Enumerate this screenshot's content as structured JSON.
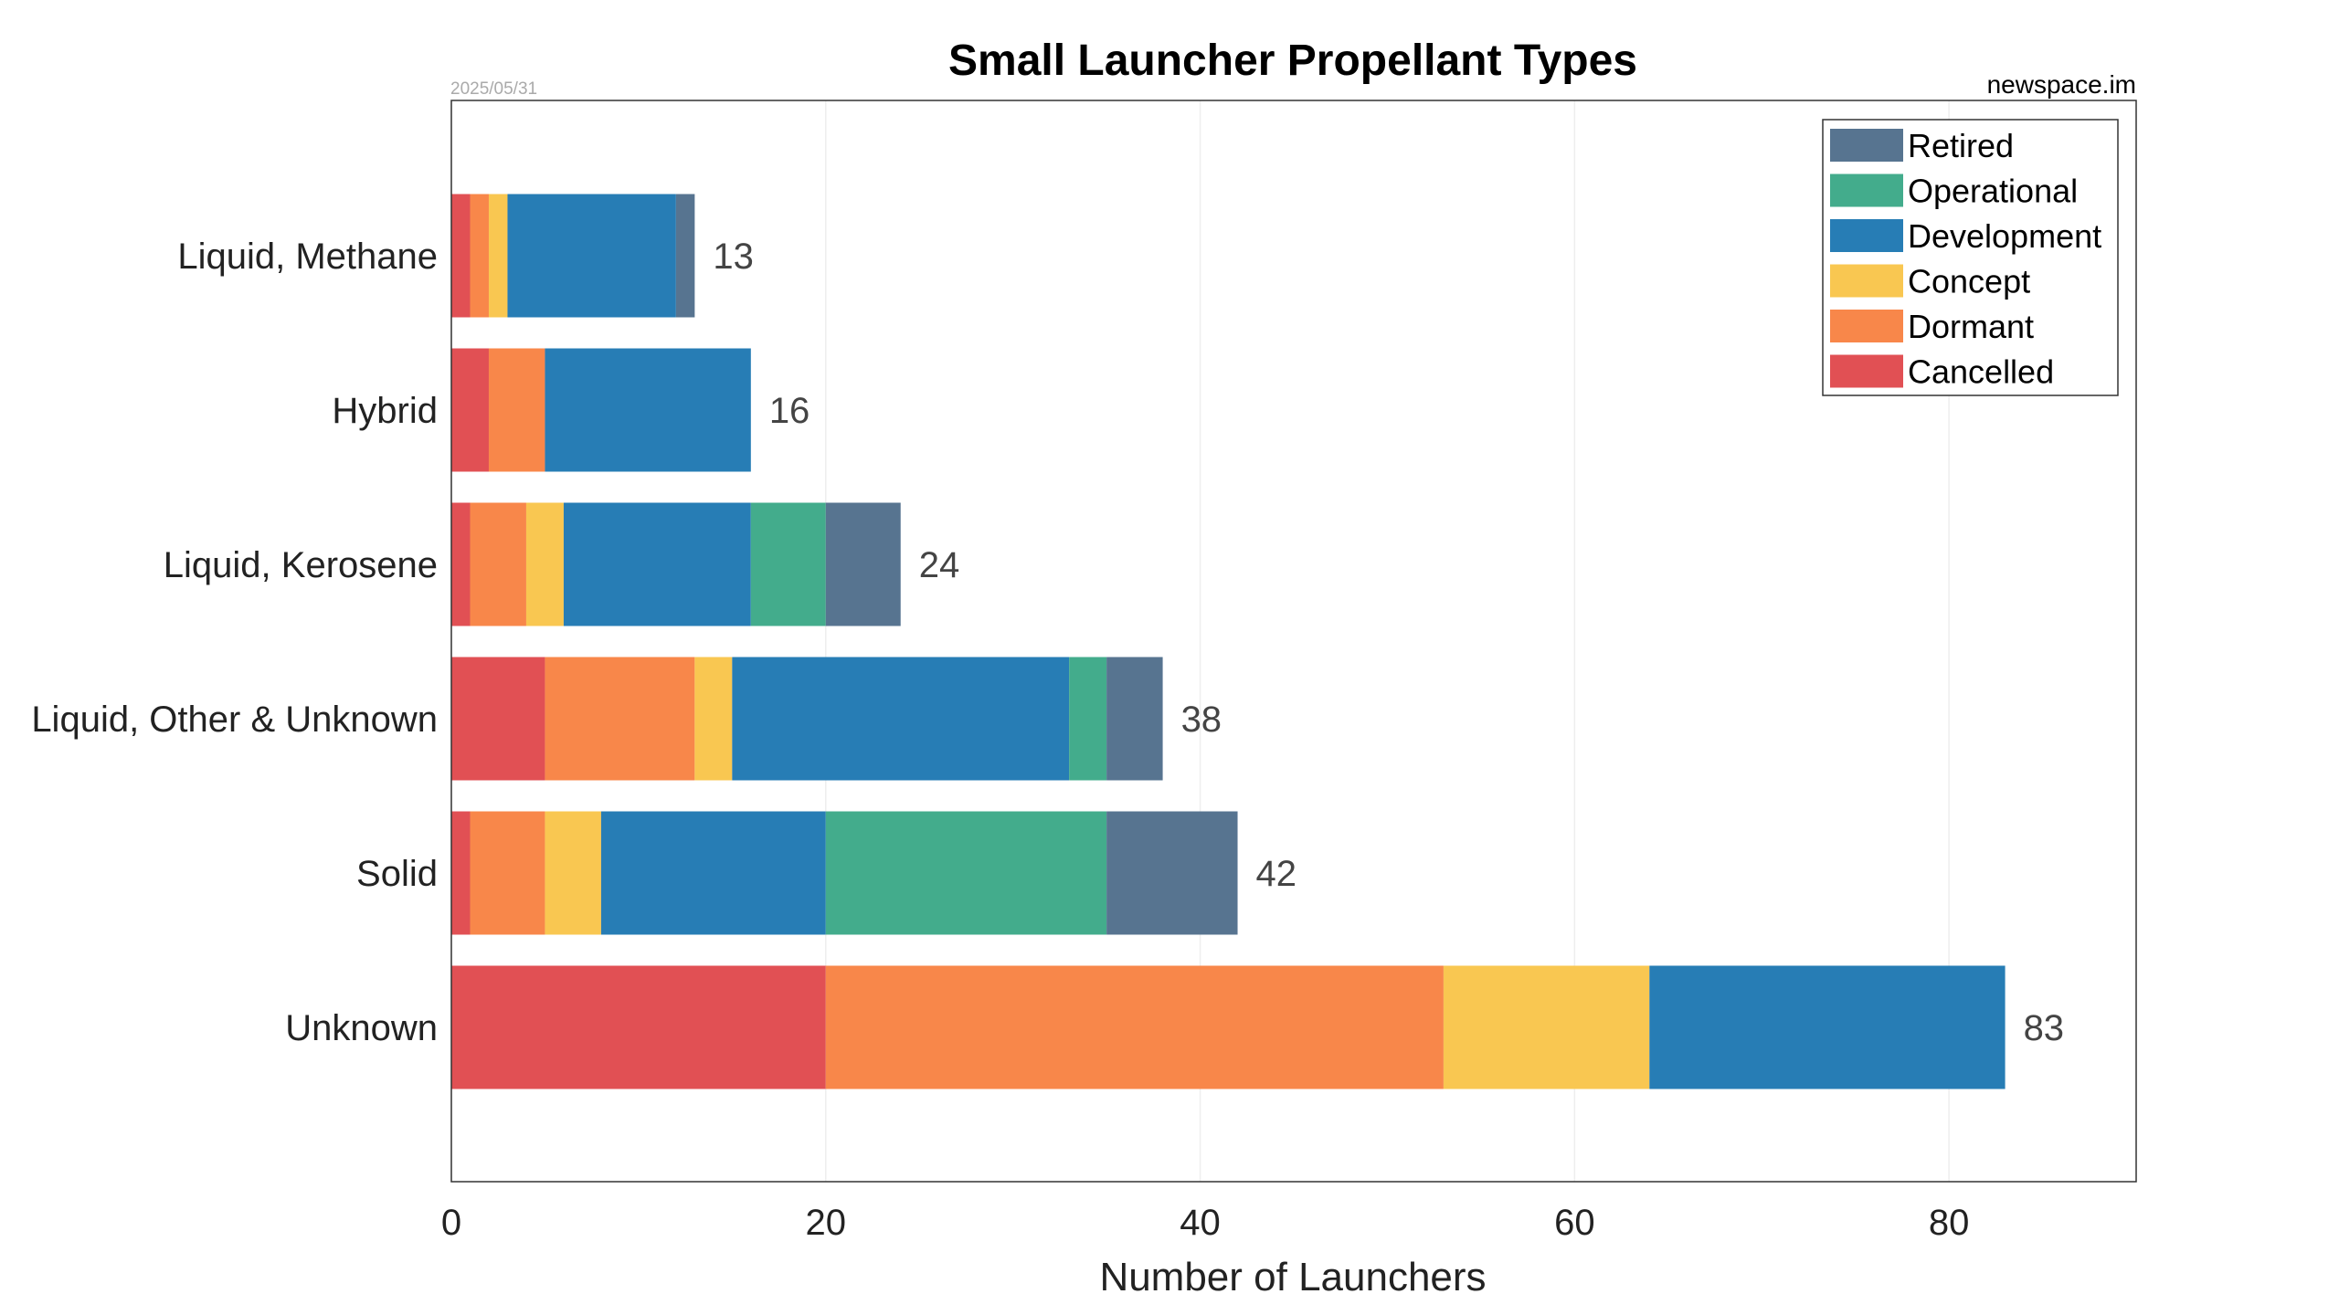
{
  "chart_data": {
    "type": "bar",
    "orientation": "horizontal",
    "stacked": true,
    "title": "Small Launcher Propellant Types",
    "date": "2025/05/31",
    "watermark": "newspace.im",
    "xlabel": "Number of Launchers",
    "ylabel": "",
    "xlim": [
      0,
      90
    ],
    "xticks": [
      0,
      20,
      40,
      60,
      80
    ],
    "grid": true,
    "legend_position": "top-right",
    "categories": [
      "Liquid, Methane",
      "Hybrid",
      "Liquid, Kerosene",
      "Liquid, Other & Unknown",
      "Solid",
      "Unknown"
    ],
    "totals": [
      13,
      16,
      24,
      38,
      42,
      83
    ],
    "series": [
      {
        "name": "Cancelled",
        "color": "#e15054",
        "values": [
          1,
          2,
          1,
          5,
          1,
          20
        ]
      },
      {
        "name": "Dormant",
        "color": "#f8874a",
        "values": [
          1,
          3,
          3,
          8,
          4,
          33
        ]
      },
      {
        "name": "Concept",
        "color": "#f9c751",
        "values": [
          1,
          0,
          2,
          2,
          3,
          11
        ]
      },
      {
        "name": "Development",
        "color": "#277db5",
        "values": [
          9,
          11,
          10,
          18,
          12,
          19
        ]
      },
      {
        "name": "Operational",
        "color": "#43ac8c",
        "values": [
          0,
          0,
          4,
          2,
          15,
          0
        ]
      },
      {
        "name": "Retired",
        "color": "#577490",
        "values": [
          1,
          0,
          4,
          3,
          7,
          0
        ]
      }
    ],
    "legend_order": [
      "Retired",
      "Operational",
      "Development",
      "Concept",
      "Dormant",
      "Cancelled"
    ]
  }
}
